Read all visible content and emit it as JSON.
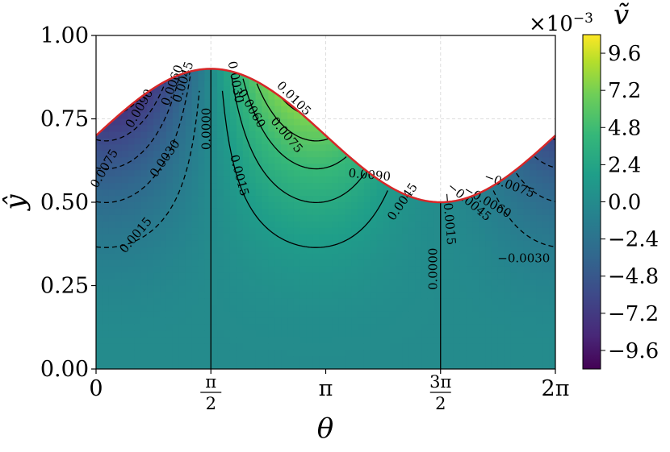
{
  "chart_data": {
    "type": "heatmap",
    "description_kind": "filled contour field with contour lines",
    "title": "",
    "xlabel": "θ",
    "ylabel": "ŷ",
    "xlim": [
      0,
      6.2832
    ],
    "ylim": [
      0,
      1.0
    ],
    "x_ticks": [
      {
        "value": 0,
        "label": "0"
      },
      {
        "value": 1.5708,
        "label": "π/2",
        "num": "π",
        "den": "2"
      },
      {
        "value": 3.1416,
        "label": "π"
      },
      {
        "value": 4.7124,
        "label": "3π/2",
        "num": "3π",
        "den": "2"
      },
      {
        "value": 6.2832,
        "label": "2π"
      }
    ],
    "y_ticks": [
      "0.00",
      "0.25",
      "0.50",
      "0.75",
      "1.00"
    ],
    "grid": true,
    "upper_boundary": {
      "description": "ŷ = 0.7 + 0.2 sin θ",
      "color": "#d62728",
      "mean": 0.7,
      "amplitude": 0.2
    },
    "colorbar": {
      "label": "ṽ",
      "multiplier": "×10",
      "multiplier_exponent": "−3",
      "colormap": "viridis",
      "range": [
        -0.0108,
        0.0108
      ],
      "tick_labels": [
        "9.6",
        "7.2",
        "4.8",
        "2.4",
        "0.0",
        "−2.4",
        "−4.8",
        "−7.2",
        "−9.6"
      ],
      "tick_values": [
        9.6,
        7.2,
        4.8,
        2.4,
        0.0,
        -2.4,
        -4.8,
        -7.2,
        -9.6
      ]
    },
    "contour_levels": [
      -0.009,
      -0.0075,
      -0.006,
      -0.0045,
      -0.003,
      -0.0015,
      0.0,
      0.0015,
      0.003,
      0.0045,
      0.006,
      0.0075,
      0.009,
      0.0105
    ],
    "contour_labels": [
      {
        "text": "0.0090",
        "x": 0.6,
        "y": 0.78,
        "rot": -60
      },
      {
        "text": "0.0060",
        "x": 1.05,
        "y": 0.85,
        "rot": -70
      },
      {
        "text": "0.0045",
        "x": 1.2,
        "y": 0.86,
        "rot": -72
      },
      {
        "text": "0.0075",
        "x": 0.12,
        "y": 0.6,
        "rot": -60
      },
      {
        "text": "0.0030",
        "x": 0.95,
        "y": 0.63,
        "rot": -55
      },
      {
        "text": "0.0015",
        "x": 0.55,
        "y": 0.4,
        "rot": -50
      },
      {
        "text": "0.0000",
        "x": 1.52,
        "y": 0.72,
        "rot": -90
      },
      {
        "text": "0.0015",
        "x": 1.95,
        "y": 0.58,
        "rot": 75
      },
      {
        "text": "0.0030",
        "x": 1.9,
        "y": 0.86,
        "rot": 80
      },
      {
        "text": "0.0060",
        "x": 2.12,
        "y": 0.78,
        "rot": 60
      },
      {
        "text": "0.0075",
        "x": 2.6,
        "y": 0.7,
        "rot": 50
      },
      {
        "text": "0.0105",
        "x": 2.7,
        "y": 0.81,
        "rot": 45
      },
      {
        "text": "0.0090",
        "x": 3.74,
        "y": 0.58,
        "rot": 5
      },
      {
        "text": "0.0045",
        "x": 4.2,
        "y": 0.5,
        "rot": -55
      },
      {
        "text": "0.0000",
        "x": 4.62,
        "y": 0.3,
        "rot": -90
      },
      {
        "text": "−0.0015",
        "x": 4.82,
        "y": 0.45,
        "rot": 85
      },
      {
        "text": "−0.0045",
        "x": 5.1,
        "y": 0.5,
        "rot": 40
      },
      {
        "text": "−0.0060",
        "x": 5.35,
        "y": 0.5,
        "rot": 30
      },
      {
        "text": "−0.0075",
        "x": 5.65,
        "y": 0.55,
        "rot": 20
      },
      {
        "text": "−0.0030",
        "x": 5.85,
        "y": 0.33,
        "rot": 0
      }
    ]
  }
}
